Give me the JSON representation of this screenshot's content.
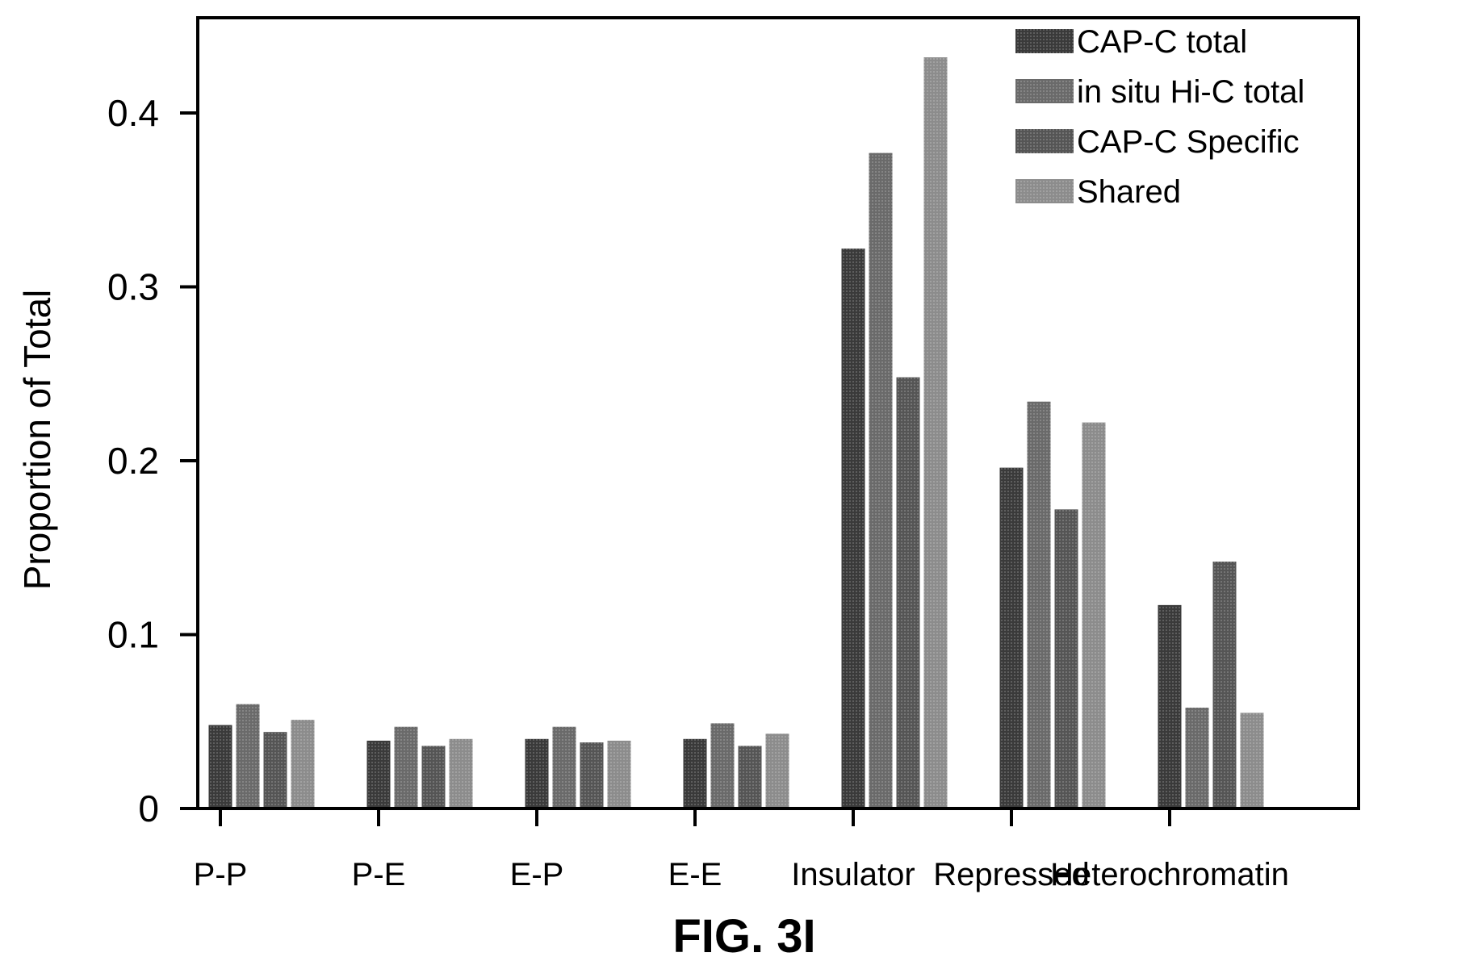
{
  "chart_data": {
    "type": "bar",
    "title": "",
    "xlabel": "",
    "ylabel": "Proportion of Total",
    "caption": "FIG. 3I",
    "ylim": [
      0,
      0.45
    ],
    "yticks": [
      0,
      0.1,
      0.2,
      0.3,
      0.4
    ],
    "ytick_labels": [
      "0",
      "0.1",
      "0.2",
      "0.3",
      "0.4"
    ],
    "grid": false,
    "legend_position": "top-right",
    "categories": [
      "P-P",
      "P-E",
      "E-P",
      "E-E",
      "Insulator",
      "Repressed",
      "Heterochromatin"
    ],
    "series": [
      {
        "name": "CAP-C total",
        "color": "#3a3a3a",
        "values": [
          0.048,
          0.039,
          0.04,
          0.04,
          0.322,
          0.196,
          0.117
        ]
      },
      {
        "name": "in situ Hi-C total",
        "color": "#6a6a6a",
        "values": [
          0.06,
          0.047,
          0.047,
          0.049,
          0.377,
          0.234,
          0.058
        ]
      },
      {
        "name": "CAP-C Specific",
        "color": "#555555",
        "values": [
          0.044,
          0.036,
          0.038,
          0.036,
          0.248,
          0.172,
          0.142
        ]
      },
      {
        "name": "Shared",
        "color": "#8c8c8c",
        "values": [
          0.051,
          0.04,
          0.039,
          0.043,
          0.432,
          0.222,
          0.055
        ]
      }
    ]
  }
}
